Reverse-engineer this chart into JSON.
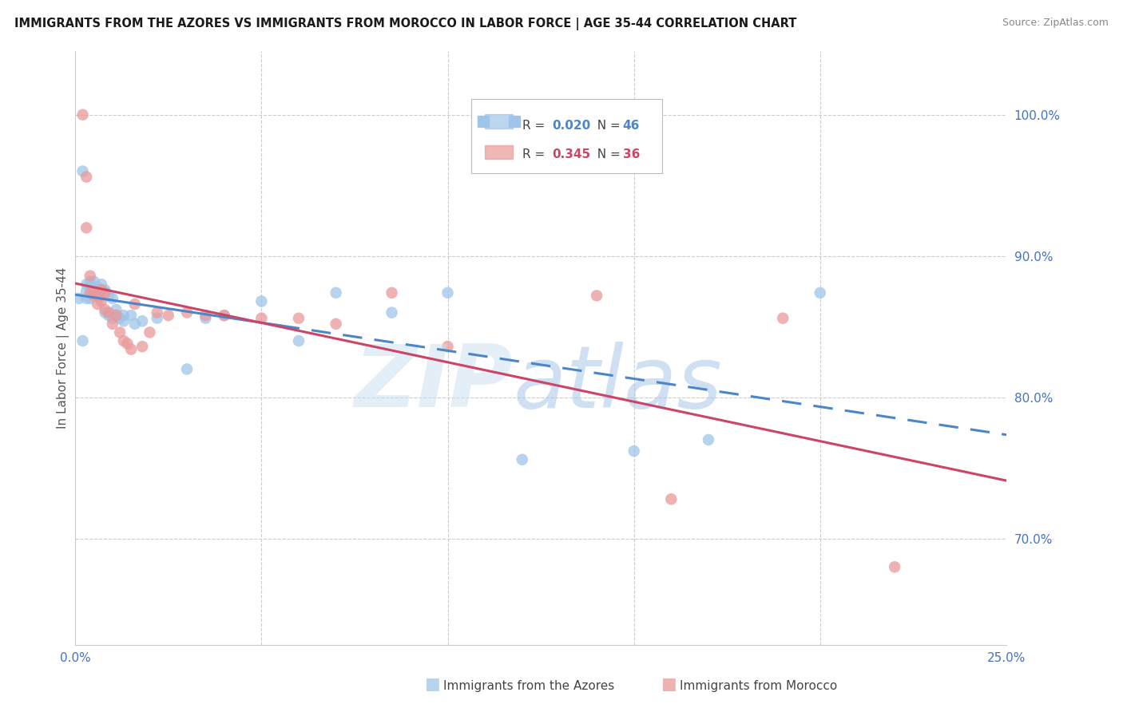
{
  "title": "IMMIGRANTS FROM THE AZORES VS IMMIGRANTS FROM MOROCCO IN LABOR FORCE | AGE 35-44 CORRELATION CHART",
  "source": "Source: ZipAtlas.com",
  "ylabel": "In Labor Force | Age 35-44",
  "xlim": [
    0.0,
    0.25
  ],
  "ylim": [
    0.625,
    1.045
  ],
  "xticks": [
    0.0,
    0.05,
    0.1,
    0.15,
    0.2,
    0.25
  ],
  "xtick_labels": [
    "0.0%",
    "",
    "",
    "",
    "",
    "25.0%"
  ],
  "yticks_right": [
    0.7,
    0.8,
    0.9,
    1.0
  ],
  "ytick_labels_right": [
    "70.0%",
    "80.0%",
    "90.0%",
    "100.0%"
  ],
  "azores_R": 0.02,
  "azores_N": 46,
  "morocco_R": 0.345,
  "morocco_N": 36,
  "azores_color": "#9fc5e8",
  "morocco_color": "#ea9999",
  "azores_line_color": "#4a86c8",
  "morocco_line_color": "#cc4466",
  "azores_x": [
    0.001,
    0.002,
    0.002,
    0.003,
    0.003,
    0.003,
    0.004,
    0.004,
    0.004,
    0.005,
    0.005,
    0.005,
    0.006,
    0.006,
    0.006,
    0.007,
    0.007,
    0.007,
    0.008,
    0.008,
    0.008,
    0.009,
    0.009,
    0.01,
    0.01,
    0.011,
    0.011,
    0.012,
    0.013,
    0.013,
    0.015,
    0.016,
    0.018,
    0.022,
    0.03,
    0.035,
    0.04,
    0.05,
    0.06,
    0.07,
    0.085,
    0.1,
    0.12,
    0.15,
    0.17,
    0.2
  ],
  "azores_y": [
    0.87,
    0.96,
    0.84,
    0.87,
    0.875,
    0.88,
    0.87,
    0.878,
    0.882,
    0.874,
    0.876,
    0.882,
    0.872,
    0.874,
    0.878,
    0.872,
    0.876,
    0.88,
    0.874,
    0.876,
    0.86,
    0.872,
    0.858,
    0.87,
    0.856,
    0.862,
    0.858,
    0.856,
    0.854,
    0.858,
    0.858,
    0.852,
    0.854,
    0.856,
    0.82,
    0.856,
    0.858,
    0.868,
    0.84,
    0.874,
    0.86,
    0.874,
    0.756,
    0.762,
    0.77,
    0.874
  ],
  "morocco_x": [
    0.002,
    0.003,
    0.003,
    0.004,
    0.004,
    0.005,
    0.005,
    0.006,
    0.007,
    0.007,
    0.008,
    0.008,
    0.009,
    0.01,
    0.011,
    0.012,
    0.013,
    0.014,
    0.015,
    0.016,
    0.018,
    0.02,
    0.022,
    0.025,
    0.03,
    0.035,
    0.04,
    0.05,
    0.06,
    0.07,
    0.085,
    0.1,
    0.14,
    0.16,
    0.19,
    0.22
  ],
  "morocco_y": [
    1.0,
    0.956,
    0.92,
    0.886,
    0.874,
    0.874,
    0.872,
    0.866,
    0.876,
    0.868,
    0.874,
    0.862,
    0.86,
    0.852,
    0.858,
    0.846,
    0.84,
    0.838,
    0.834,
    0.866,
    0.836,
    0.846,
    0.86,
    0.858,
    0.86,
    0.858,
    0.858,
    0.856,
    0.856,
    0.852,
    0.874,
    0.836,
    0.872,
    0.728,
    0.856,
    0.68
  ],
  "az_line_x0": 0.0,
  "az_line_x_solid_end": 0.055,
  "az_line_x1": 0.25,
  "mo_line_x0": 0.0,
  "mo_line_x1": 0.25
}
